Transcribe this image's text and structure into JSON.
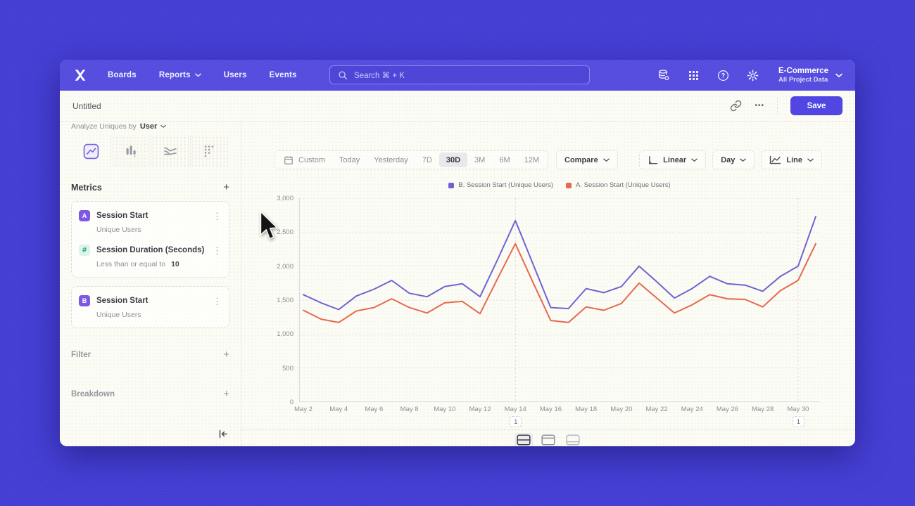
{
  "nav": {
    "items": [
      {
        "label": "Boards"
      },
      {
        "label": "Reports"
      },
      {
        "label": "Users"
      },
      {
        "label": "Events"
      }
    ],
    "search_placeholder": "Search  ⌘ + K",
    "project": {
      "name": "E-Commerce",
      "subtitle": "All Project Data"
    }
  },
  "titlebar": {
    "title": "Untitled",
    "save_label": "Save",
    "more_glyph": "•••"
  },
  "sidebar": {
    "analyze_prefix": "Analyze Uniques by",
    "analyze_value": "User",
    "metrics_header": "Metrics",
    "metrics": [
      {
        "badge": "A",
        "title": "Session Start",
        "subtitle": "Unique Users"
      },
      {
        "badge": "#",
        "title": "Session Duration (Seconds)",
        "subtitle_prefix": "Less than or equal to",
        "subtitle_value": "10"
      },
      {
        "badge": "B",
        "title": "Session Start",
        "subtitle": "Unique Users"
      }
    ],
    "filter_label": "Filter",
    "breakdown_label": "Breakdown"
  },
  "controls": {
    "date_ranges": [
      "Custom",
      "Today",
      "Yesterday",
      "7D",
      "30D",
      "3M",
      "6M",
      "12M"
    ],
    "active_range": "30D",
    "compare_label": "Compare",
    "scale_label": "Linear",
    "interval_label": "Day",
    "chart_type_label": "Line"
  },
  "glyphs": {
    "kebab": "⋮",
    "plus": "+"
  },
  "chart_data": {
    "type": "line",
    "x_labels": [
      "May 2",
      "May 3",
      "May 4",
      "May 5",
      "May 6",
      "May 7",
      "May 8",
      "May 9",
      "May 10",
      "May 11",
      "May 12",
      "May 13",
      "May 14",
      "May 15",
      "May 16",
      "May 17",
      "May 18",
      "May 19",
      "May 20",
      "May 21",
      "May 22",
      "May 23",
      "May 24",
      "May 25",
      "May 26",
      "May 27",
      "May 28",
      "May 29",
      "May 30",
      "May 31"
    ],
    "x_tick_every": 2,
    "ylim": [
      0,
      3000
    ],
    "y_tick_step": 500,
    "y_tick_labels": [
      "0",
      "500",
      "1,000",
      "1,500",
      "2,000",
      "2,500",
      "3,000"
    ],
    "grid": "dotted-horizontal",
    "legend_position": "top-center",
    "series": [
      {
        "name": "B. Session Start (Unique Users)",
        "color": "#6f63d2",
        "values": [
          1580,
          1460,
          1360,
          1560,
          1660,
          1790,
          1600,
          1550,
          1700,
          1740,
          1550,
          2100,
          2670,
          2030,
          1390,
          1375,
          1670,
          1610,
          1700,
          2000,
          1770,
          1530,
          1670,
          1850,
          1740,
          1720,
          1630,
          1850,
          2000,
          2730
        ]
      },
      {
        "name": "A. Session Start (Unique Users)",
        "color": "#e5694f",
        "values": [
          1350,
          1220,
          1170,
          1340,
          1390,
          1520,
          1390,
          1310,
          1460,
          1480,
          1300,
          1820,
          2330,
          1760,
          1200,
          1170,
          1400,
          1350,
          1450,
          1750,
          1530,
          1310,
          1430,
          1580,
          1520,
          1510,
          1400,
          1640,
          1790,
          2330
        ]
      }
    ],
    "annotations": [
      {
        "day_index": 12,
        "label": "1"
      },
      {
        "day_index": 28,
        "label": "1"
      }
    ]
  }
}
